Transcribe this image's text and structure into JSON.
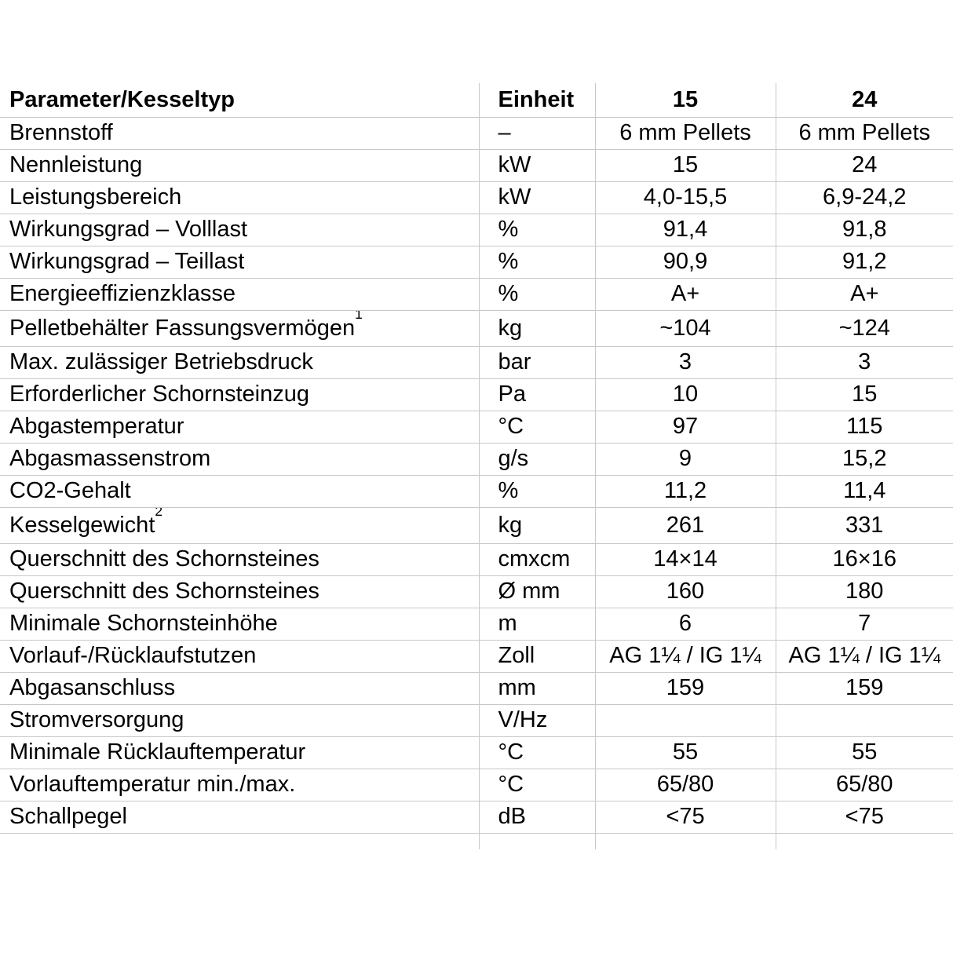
{
  "page": {
    "background_color": "#ffffff",
    "grid_color": "#c8c8c8",
    "text_color": "#000000"
  },
  "table": {
    "header": {
      "parameter": "Parameter/Kesseltyp",
      "unit": "Einheit",
      "model_15": "15",
      "model_24": "24"
    },
    "rows": [
      {
        "parameter": "Brennstoff",
        "footnote": "",
        "unit": "–",
        "value_15": "6 mm Pellets",
        "value_24": "6 mm Pellets"
      },
      {
        "parameter": "Nennleistung",
        "footnote": "",
        "unit": "kW",
        "value_15": "15",
        "value_24": "24"
      },
      {
        "parameter": "Leistungsbereich",
        "footnote": "",
        "unit": "kW",
        "value_15": "4,0-15,5",
        "value_24": "6,9-24,2"
      },
      {
        "parameter": "Wirkungsgrad – Volllast",
        "footnote": "",
        "unit": "%",
        "value_15": "91,4",
        "value_24": "91,8"
      },
      {
        "parameter": "Wirkungsgrad – Teillast",
        "footnote": "",
        "unit": "%",
        "value_15": "90,9",
        "value_24": "91,2"
      },
      {
        "parameter": "Energieeffizienzklasse",
        "footnote": "",
        "unit": "%",
        "value_15": "A+",
        "value_24": "A+"
      },
      {
        "parameter": "Pelletbehälter Fassungsvermögen",
        "footnote": "1",
        "unit": "kg",
        "value_15": "~104",
        "value_24": "~124"
      },
      {
        "parameter": "Max. zulässiger Betriebsdruck",
        "footnote": "",
        "unit": "bar",
        "value_15": "3",
        "value_24": "3"
      },
      {
        "parameter": "Erforderlicher Schornsteinzug",
        "footnote": "",
        "unit": "Pa",
        "value_15": "10",
        "value_24": "15"
      },
      {
        "parameter": "Abgastemperatur",
        "footnote": "",
        "unit": "°C",
        "value_15": "97",
        "value_24": "115"
      },
      {
        "parameter": "Abgasmassenstrom",
        "footnote": "",
        "unit": "g/s",
        "value_15": "9",
        "value_24": "15,2"
      },
      {
        "parameter": "CO2-Gehalt",
        "footnote": "",
        "unit": "%",
        "value_15": "11,2",
        "value_24": "11,4"
      },
      {
        "parameter": "Kesselgewicht",
        "footnote": "2",
        "unit": "kg",
        "value_15": "261",
        "value_24": "331"
      },
      {
        "parameter": "Querschnitt des Schornsteines",
        "footnote": "",
        "unit": "cmxcm",
        "value_15": "14×14",
        "value_24": "16×16"
      },
      {
        "parameter": "Querschnitt des Schornsteines",
        "footnote": "",
        "unit": "Ø mm",
        "value_15": "160",
        "value_24": "180"
      },
      {
        "parameter": "Minimale Schornsteinhöhe",
        "footnote": "",
        "unit": "m",
        "value_15": "6",
        "value_24": "7"
      },
      {
        "parameter": "Vorlauf-/Rücklaufstutzen",
        "footnote": "",
        "unit": "Zoll",
        "value_15": "AG 1¼ / IG 1¼",
        "value_24": "AG 1¼ / IG 1¼"
      },
      {
        "parameter": "Abgasanschluss",
        "footnote": "",
        "unit": "mm",
        "value_15": "159",
        "value_24": "159"
      },
      {
        "parameter": "Stromversorgung",
        "footnote": "",
        "unit": "V/Hz",
        "value_15": "",
        "value_24": ""
      },
      {
        "parameter": "Minimale Rücklauftemperatur",
        "footnote": "",
        "unit": "°C",
        "value_15": "55",
        "value_24": "55"
      },
      {
        "parameter": "Vorlauftemperatur min./max.",
        "footnote": "",
        "unit": "°C",
        "value_15": "65/80",
        "value_24": "65/80"
      },
      {
        "parameter": "Schallpegel",
        "footnote": "",
        "unit": "dB",
        "value_15": "<75",
        "value_24": "<75"
      },
      {
        "parameter": "",
        "footnote": "",
        "unit": "",
        "value_15": "",
        "value_24": ""
      }
    ]
  }
}
